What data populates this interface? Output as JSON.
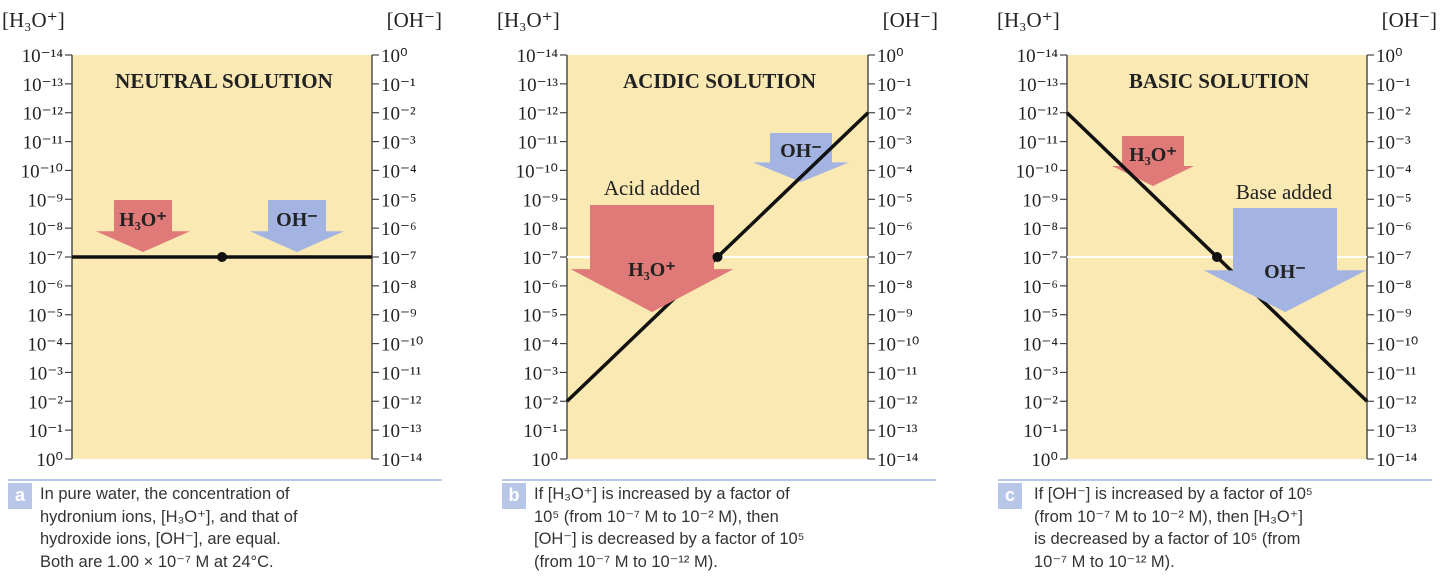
{
  "axes": {
    "left_label": "[H₃O⁺]",
    "right_label": "[OH⁻]",
    "left_ticks": [
      "10⁻¹⁴",
      "10⁻¹³",
      "10⁻¹²",
      "10⁻¹¹",
      "10⁻¹⁰",
      "10⁻⁹",
      "10⁻⁸",
      "10⁻⁷",
      "10⁻⁶",
      "10⁻⁵",
      "10⁻⁴",
      "10⁻³",
      "10⁻²",
      "10⁻¹",
      "10⁰"
    ],
    "right_ticks": [
      "10⁰",
      "10⁻¹",
      "10⁻²",
      "10⁻³",
      "10⁻⁴",
      "10⁻⁵",
      "10⁻⁶",
      "10⁻⁷",
      "10⁻⁸",
      "10⁻⁹",
      "10⁻¹⁰",
      "10⁻¹¹",
      "10⁻¹²",
      "10⁻¹³",
      "10⁻¹⁴"
    ]
  },
  "panels": [
    {
      "title": "NEUTRAL SOLUTION",
      "badge": "a",
      "h3o_label": "H₃O⁺",
      "oh_label": "OH⁻",
      "added_label": "",
      "h3o_log": -7,
      "caption": [
        "In pure water, the concentration of",
        "hydronium ions, [H₃O⁺], and that of",
        "hydroxide ions, [OH⁻], are equal.",
        "Both are 1.00 × 10⁻⁷ M at 24°C."
      ]
    },
    {
      "title": "ACIDIC SOLUTION",
      "badge": "b",
      "h3o_label": "H₃O⁺",
      "oh_label": "OH⁻",
      "added_label": "Acid added",
      "h3o_log": -2,
      "caption": [
        "If [H₃O⁺] is increased by a factor of",
        "10⁵ (from 10⁻⁷ M to 10⁻² M), then",
        "[OH⁻] is decreased by a factor of 10⁵",
        "(from 10⁻⁷ M to 10⁻¹² M)."
      ]
    },
    {
      "title": "BASIC SOLUTION",
      "badge": "c",
      "h3o_label": "H₃O⁺",
      "oh_label": "OH⁻",
      "added_label": "Base added",
      "h3o_log": -12,
      "caption": [
        "If [OH⁻] is increased by a factor of 10⁵",
        "(from 10⁻⁷ M to 10⁻² M), then [H₃O⁺]",
        "is decreased by a factor of 10⁵ (from",
        "10⁻⁷ M to 10⁻¹² M)."
      ]
    }
  ],
  "colors": {
    "panel_bg": "#fbe9b3",
    "h3o_arrow": "#e07a78",
    "oh_arrow": "#a4b4e2",
    "line": "#111111",
    "caption_accent": "#b8c7e8"
  }
}
